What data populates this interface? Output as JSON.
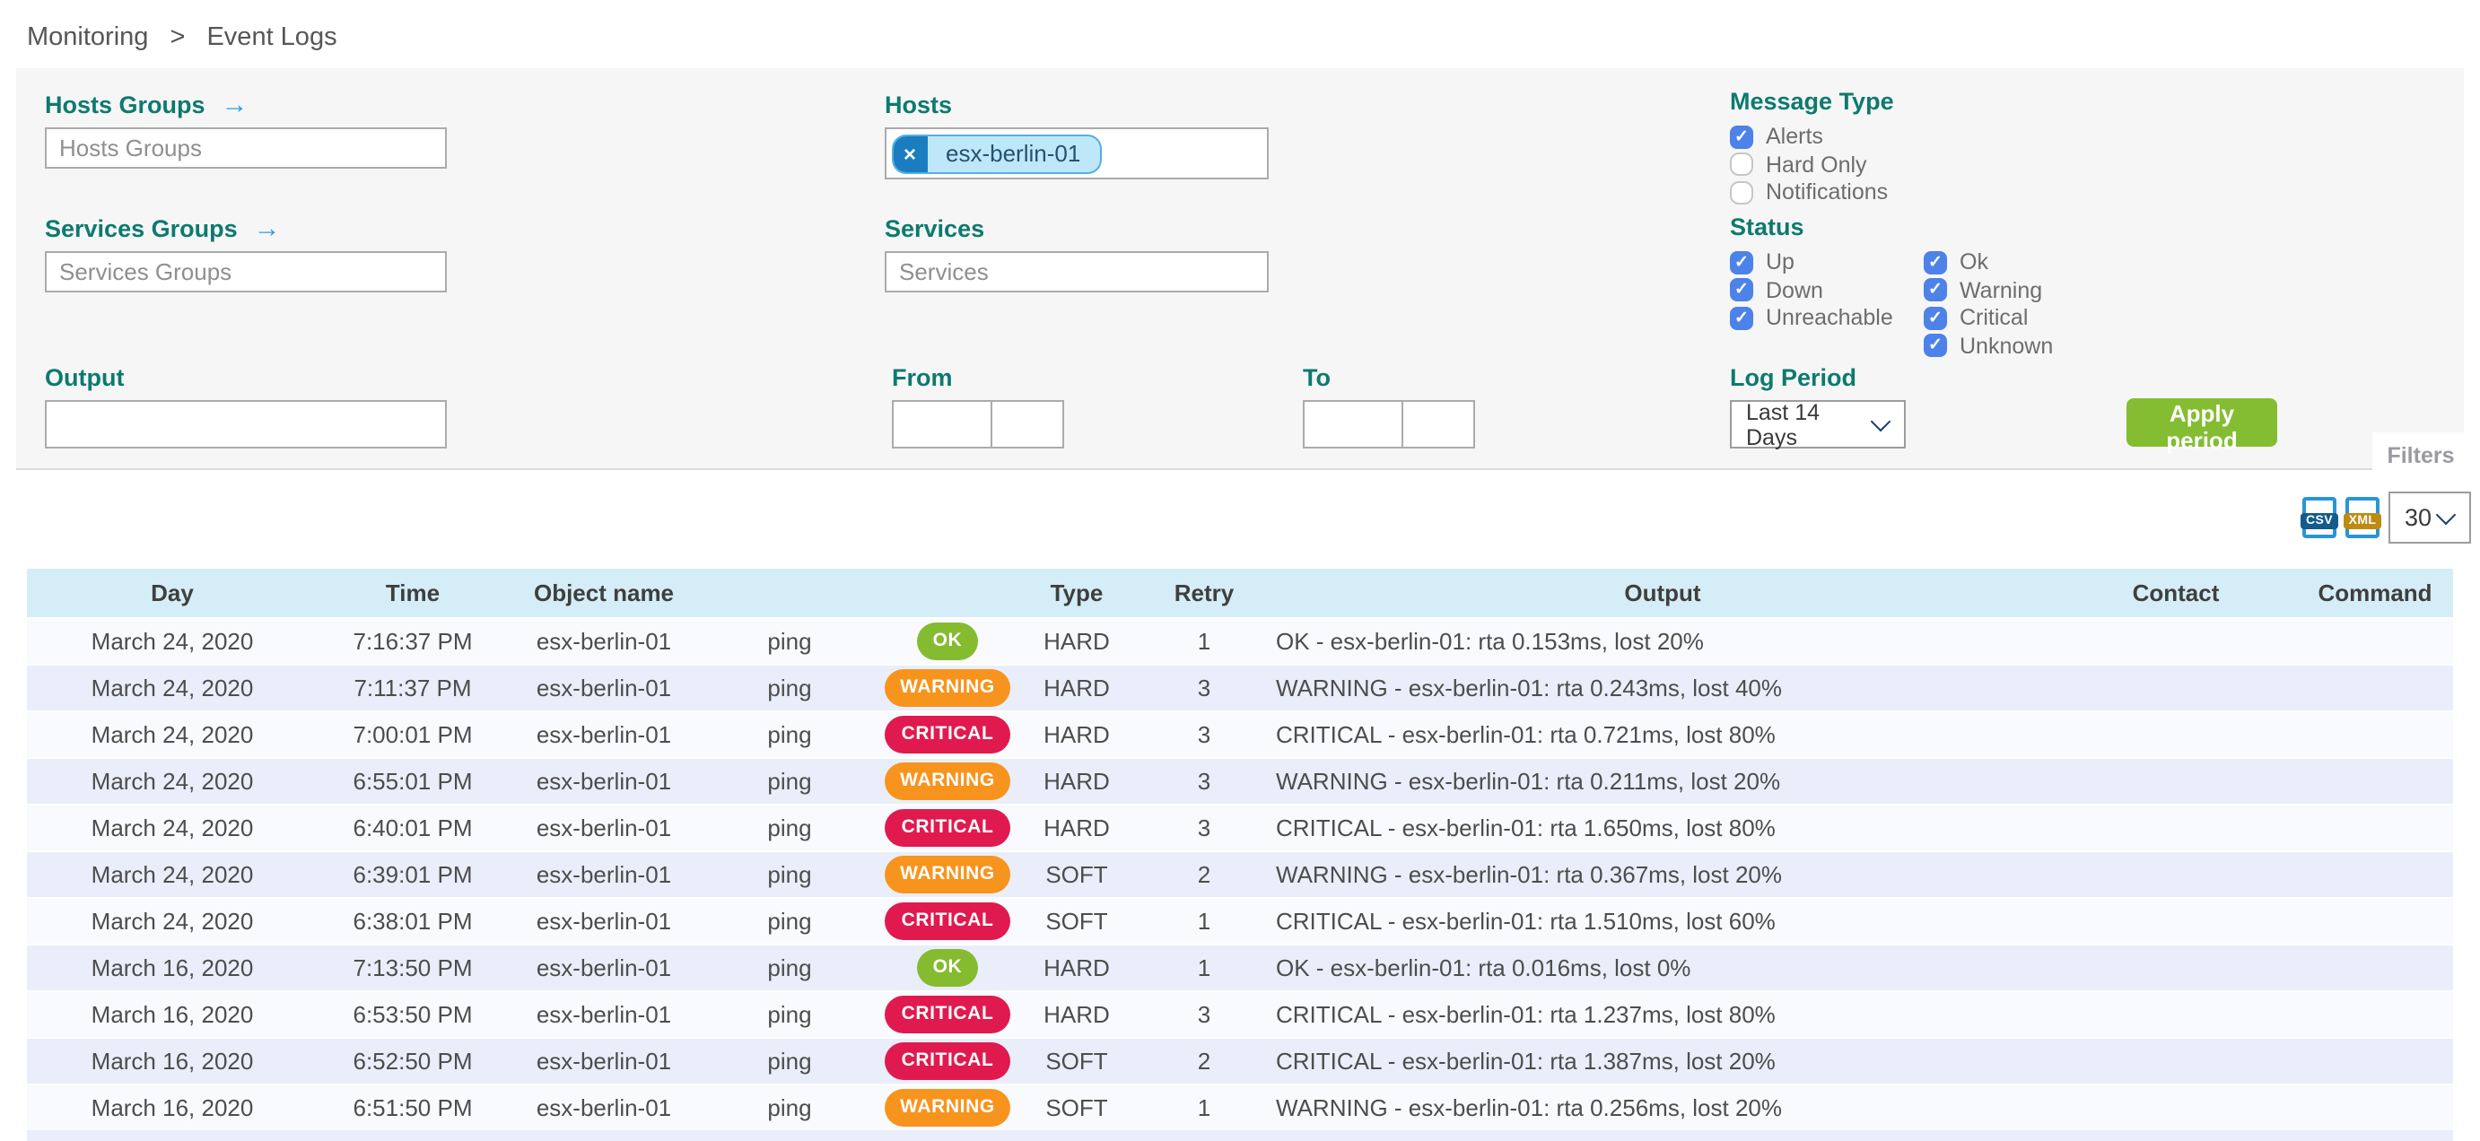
{
  "breadcrumb": {
    "items": [
      "Monitoring",
      "Event Logs"
    ],
    "separator": ">"
  },
  "filters": {
    "hosts_groups": {
      "label": "Hosts Groups",
      "placeholder": "Hosts Groups"
    },
    "services_groups": {
      "label": "Services Groups",
      "placeholder": "Services Groups"
    },
    "hosts": {
      "label": "Hosts",
      "chips": [
        "esx-berlin-01"
      ]
    },
    "services": {
      "label": "Services",
      "placeholder": "Services"
    },
    "output": {
      "label": "Output",
      "value": ""
    },
    "from": {
      "label": "From",
      "date_value": "",
      "time_value": ""
    },
    "to": {
      "label": "To",
      "date_value": "",
      "time_value": ""
    },
    "message_type": {
      "label": "Message Type",
      "options": [
        {
          "label": "Alerts",
          "checked": true
        },
        {
          "label": "Hard Only",
          "checked": false
        },
        {
          "label": "Notifications",
          "checked": false
        }
      ]
    },
    "status": {
      "label": "Status",
      "col1": [
        {
          "label": "Up",
          "checked": true
        },
        {
          "label": "Down",
          "checked": true
        },
        {
          "label": "Unreachable",
          "checked": true
        }
      ],
      "col2": [
        {
          "label": "Ok",
          "checked": true
        },
        {
          "label": "Warning",
          "checked": true
        },
        {
          "label": "Critical",
          "checked": true
        },
        {
          "label": "Unknown",
          "checked": true
        }
      ]
    },
    "log_period": {
      "label": "Log Period",
      "value": "Last 14 Days"
    },
    "apply_label": "Apply period",
    "filters_tab_label": "Filters"
  },
  "export": {
    "csv_label": "CSV",
    "xml_label": "XML",
    "page_size": "30"
  },
  "table": {
    "headers": [
      "Day",
      "Time",
      "Object name",
      "",
      "",
      "Type",
      "Retry",
      "Output",
      "Contact",
      "Command"
    ],
    "rows": [
      {
        "day": "March 24, 2020",
        "time": "7:16:37 PM",
        "object_name": "esx-berlin-01",
        "service": "ping",
        "status": "OK",
        "type": "HARD",
        "retry": "1",
        "output": "OK - esx-berlin-01: rta 0.153ms, lost 20%",
        "contact": "",
        "command": ""
      },
      {
        "day": "March 24, 2020",
        "time": "7:11:37 PM",
        "object_name": "esx-berlin-01",
        "service": "ping",
        "status": "WARNING",
        "type": "HARD",
        "retry": "3",
        "output": "WARNING - esx-berlin-01: rta 0.243ms, lost 40%",
        "contact": "",
        "command": ""
      },
      {
        "day": "March 24, 2020",
        "time": "7:00:01 PM",
        "object_name": "esx-berlin-01",
        "service": "ping",
        "status": "CRITICAL",
        "type": "HARD",
        "retry": "3",
        "output": "CRITICAL - esx-berlin-01: rta 0.721ms, lost 80%",
        "contact": "",
        "command": ""
      },
      {
        "day": "March 24, 2020",
        "time": "6:55:01 PM",
        "object_name": "esx-berlin-01",
        "service": "ping",
        "status": "WARNING",
        "type": "HARD",
        "retry": "3",
        "output": "WARNING - esx-berlin-01: rta 0.211ms, lost 20%",
        "contact": "",
        "command": ""
      },
      {
        "day": "March 24, 2020",
        "time": "6:40:01 PM",
        "object_name": "esx-berlin-01",
        "service": "ping",
        "status": "CRITICAL",
        "type": "HARD",
        "retry": "3",
        "output": "CRITICAL - esx-berlin-01: rta 1.650ms, lost 80%",
        "contact": "",
        "command": ""
      },
      {
        "day": "March 24, 2020",
        "time": "6:39:01 PM",
        "object_name": "esx-berlin-01",
        "service": "ping",
        "status": "WARNING",
        "type": "SOFT",
        "retry": "2",
        "output": "WARNING - esx-berlin-01: rta 0.367ms, lost 20%",
        "contact": "",
        "command": ""
      },
      {
        "day": "March 24, 2020",
        "time": "6:38:01 PM",
        "object_name": "esx-berlin-01",
        "service": "ping",
        "status": "CRITICAL",
        "type": "SOFT",
        "retry": "1",
        "output": "CRITICAL - esx-berlin-01: rta 1.510ms, lost 60%",
        "contact": "",
        "command": ""
      },
      {
        "day": "March 16, 2020",
        "time": "7:13:50 PM",
        "object_name": "esx-berlin-01",
        "service": "ping",
        "status": "OK",
        "type": "HARD",
        "retry": "1",
        "output": "OK - esx-berlin-01: rta 0.016ms, lost 0%",
        "contact": "",
        "command": ""
      },
      {
        "day": "March 16, 2020",
        "time": "6:53:50 PM",
        "object_name": "esx-berlin-01",
        "service": "ping",
        "status": "CRITICAL",
        "type": "HARD",
        "retry": "3",
        "output": "CRITICAL - esx-berlin-01: rta 1.237ms, lost 80%",
        "contact": "",
        "command": ""
      },
      {
        "day": "March 16, 2020",
        "time": "6:52:50 PM",
        "object_name": "esx-berlin-01",
        "service": "ping",
        "status": "CRITICAL",
        "type": "SOFT",
        "retry": "2",
        "output": "CRITICAL - esx-berlin-01: rta 1.387ms, lost 20%",
        "contact": "",
        "command": ""
      },
      {
        "day": "March 16, 2020",
        "time": "6:51:50 PM",
        "object_name": "esx-berlin-01",
        "service": "ping",
        "status": "WARNING",
        "type": "SOFT",
        "retry": "1",
        "output": "WARNING - esx-berlin-01: rta 0.256ms, lost 20%",
        "contact": "",
        "command": ""
      }
    ]
  },
  "colors": {
    "accent_teal": "#0d7a6e",
    "link_blue": "#2d9fe0",
    "checkbox_blue": "#4d82e8",
    "chip_bg": "#bfe7fa",
    "chip_border": "#54b0e0",
    "chip_remove_bg": "#1a7dc0",
    "apply_green": "#84bd32",
    "status_ok": "#85bb2f",
    "status_warning": "#f7941e",
    "status_critical": "#e01a4e",
    "table_header_bg": "#d5edf6",
    "row_odd": "#f8fafd",
    "row_even": "#e9eefa"
  }
}
